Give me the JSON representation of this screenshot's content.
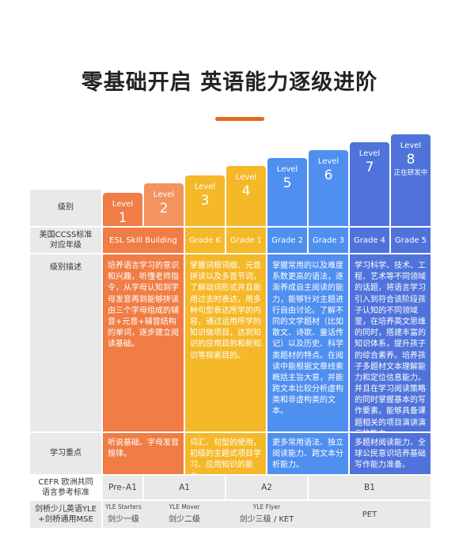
{
  "title": "零基础开启 英语能力逐级进阶",
  "levels": [
    {
      "label": "Level",
      "num": "1"
    },
    {
      "label": "Level",
      "num": "2"
    },
    {
      "label": "Level",
      "num": "3"
    },
    {
      "label": "Level",
      "num": "4"
    },
    {
      "label": "Level",
      "num": "5"
    },
    {
      "label": "Level",
      "num": "6"
    },
    {
      "label": "Level",
      "num": "7"
    },
    {
      "label": "Level",
      "num": "8",
      "note": "正在研发中"
    }
  ],
  "rows": {
    "level": "级别",
    "ccss": "美国CCSS标准\n对应年级",
    "desc": "级别描述",
    "focus": "学习重点",
    "cefr": "CEFR 欧洲共同\n语言参考标准",
    "yle": "剑桥少儿英语YLE\n+剑桥通用MSE"
  },
  "grades": [
    "ESL Skill Building",
    "Grade K",
    "Grade 1",
    "Grade 2",
    "Grade 3",
    "Grade 4",
    "Grade 5"
  ],
  "descriptions": [
    "培养语言学习的意识和兴趣，听懂老师指令，从字母认知到字母发音再到能够拼读由三个字母组成的辅音+元音+辅音结构的单词，逐步建立阅读基础。",
    "掌握词根词缀、元音拼读以及多音节词，了解动词形式并且能用过去时表达，用多种句型表达所学的内容，通过运用所学的知识做项目，达到知识的应用目的和新知识等探索目的。",
    "掌握常用的以及难度系数更高的语法，逐渐养成自主阅读的能力，能够针对主题进行自由讨论。了解不同的文学题材（比如散文、诗歌、童话传记）以及历史、科学类题材的特点。在阅读中能根据文章线索概括主旨大意，并能跨文本比较分析虚构类和非虚构类的文本。",
    "学习科学、技术、工程、艺术等不同领域的话题，将语言学习引入到符合该阶段孩子认知的不同领域里，在培养英文思维的同时，搭建丰富的知识体系，提升孩子的综合素养。培养孩子多题材文本理解能力和定位信息能力。并且在学习阅读策略的同时掌握基本的写作要素，能够具备课题相关的项目演讲演示的能力。"
  ],
  "focus": [
    "听说基础、字母发音规律。",
    "词汇、句型的使用，初级的主题式项目学习、应用知识的能力。",
    "更多常用语法、独立阅读能力、跨文本分析能力。",
    "多题材阅读能力、全球公民意识培养基础写作能力准备。"
  ],
  "cefr": [
    "Pre–A1",
    "A1",
    "A2",
    "B1"
  ],
  "yle": [
    {
      "small": "YLE Starters",
      "main": "剑少一级"
    },
    {
      "small": "YLE Mover",
      "main": "剑少二级"
    },
    {
      "small": "YLE Flyer",
      "main": "剑少三级 / KET"
    },
    {
      "small": "",
      "main": "PET"
    }
  ],
  "colors": {
    "accent": "#e8681e",
    "orange": "#f07d45",
    "orange_light": "#f4935e",
    "yellow": "#f5b829",
    "blue": "#4f8ff0",
    "navy": "#4f73da",
    "grey": "#e9e9e9"
  }
}
